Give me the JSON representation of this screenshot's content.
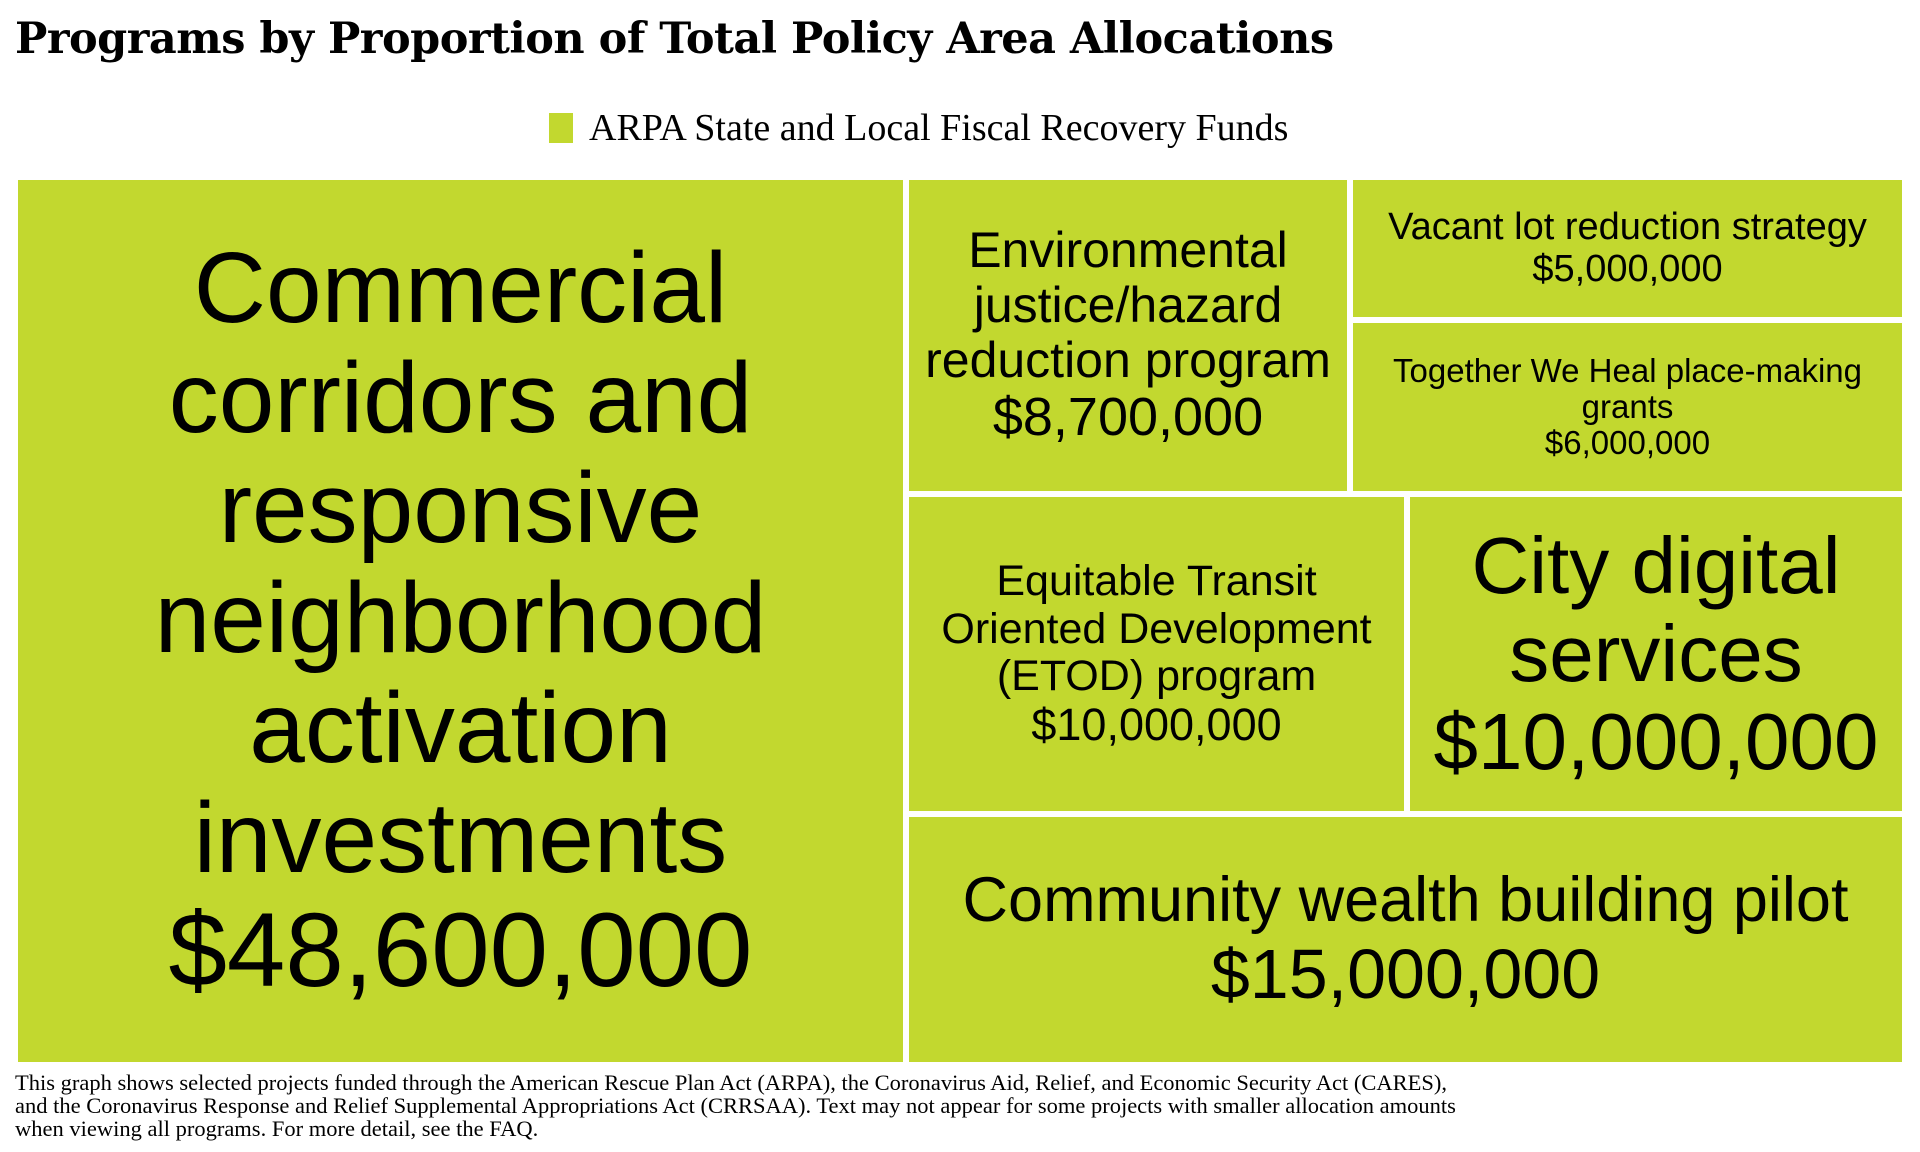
{
  "chart_data": {
    "type": "treemap",
    "title": "Programs by Proportion of Total Policy Area Allocations",
    "legend": {
      "placement": "top-center",
      "entries": [
        {
          "label": "ARPA State and Local Fiscal Recovery Funds",
          "color": "#c2d82f"
        }
      ]
    },
    "tile_color": "#c2d82f",
    "border_color": "#ffffff",
    "items": [
      {
        "name": "Commercial corridors and responsive neighborhood activation investments",
        "value": 48600000,
        "value_label": "$48,600,000"
      },
      {
        "name": "Community wealth building pilot",
        "value": 15000000,
        "value_label": "$15,000,000"
      },
      {
        "name": "Equitable Transit Oriented Development (ETOD) program",
        "value": 10000000,
        "value_label": "$10,000,000"
      },
      {
        "name": "City digital services",
        "value": 10000000,
        "value_label": "$10,000,000"
      },
      {
        "name": "Environmental justice/hazard reduction program",
        "value": 8700000,
        "value_label": "$8,700,000"
      },
      {
        "name": "Together We Heal place-making grants",
        "value": 6000000,
        "value_label": "$6,000,000"
      },
      {
        "name": "Vacant lot reduction strategy",
        "value": 5000000,
        "value_label": "$5,000,000"
      }
    ]
  },
  "footnote": "This graph shows selected projects funded through the American Rescue Plan Act (ARPA), the Coronavirus Aid, Relief, and Economic Security Act (CARES),\nand the Coronavirus Response and Relief Supplemental Appropriations Act (CRRSAA). Text may not appear for some projects with smaller allocation amounts\n when viewing all programs. For more detail, see the FAQ."
}
